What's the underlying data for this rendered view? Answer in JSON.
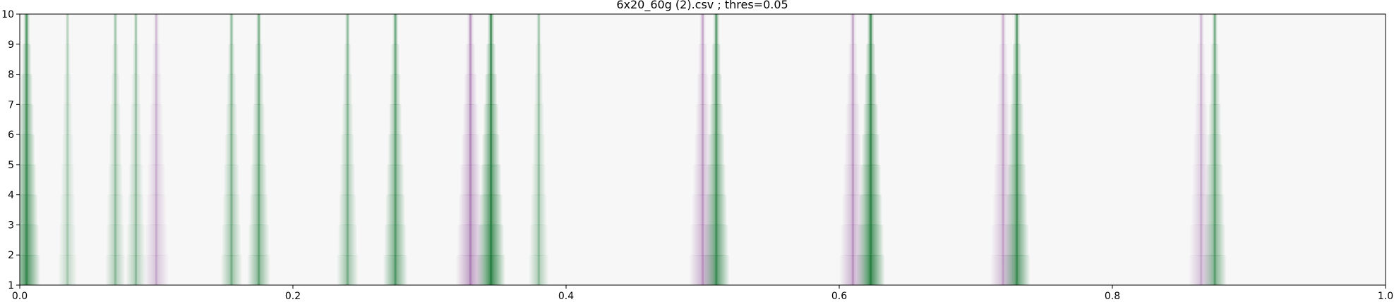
{
  "chart_data": {
    "type": "heatmap",
    "title": "6x20_60g (2).csv ; thres=0.05",
    "xlabel": "",
    "ylabel": "",
    "xlim": [
      0,
      1
    ],
    "ylim": [
      1,
      10
    ],
    "x_ticks": [
      {
        "value": 0.0,
        "label": "0.0"
      },
      {
        "value": 0.2,
        "label": "0.2"
      },
      {
        "value": 0.4,
        "label": "0.4"
      },
      {
        "value": 0.6,
        "label": "0.6"
      },
      {
        "value": 0.8,
        "label": "0.8"
      },
      {
        "value": 1.0,
        "label": "1.0"
      }
    ],
    "y_ticks": [
      {
        "value": 1,
        "label": "1"
      },
      {
        "value": 2,
        "label": "2"
      },
      {
        "value": 3,
        "label": "3"
      },
      {
        "value": 4,
        "label": "4"
      },
      {
        "value": 5,
        "label": "5"
      },
      {
        "value": 6,
        "label": "6"
      },
      {
        "value": 7,
        "label": "7"
      },
      {
        "value": 8,
        "label": "8"
      },
      {
        "value": 9,
        "label": "9"
      },
      {
        "value": 10,
        "label": "10"
      }
    ],
    "grid": false,
    "colormap": "diverging purple-white-green",
    "colors": {
      "negative": "#762a83",
      "neutral": "#f7f7f7",
      "positive": "#1b7837"
    },
    "peaks": [
      {
        "x": 0.005,
        "intensity": 0.9,
        "type": "positive"
      },
      {
        "x": 0.035,
        "intensity": 0.3,
        "type": "positive"
      },
      {
        "x": 0.07,
        "intensity": 0.4,
        "type": "positive"
      },
      {
        "x": 0.085,
        "intensity": 0.4,
        "type": "positive"
      },
      {
        "x": 0.155,
        "intensity": 0.5,
        "type": "positive"
      },
      {
        "x": 0.175,
        "intensity": 0.6,
        "type": "positive"
      },
      {
        "x": 0.24,
        "intensity": 0.5,
        "type": "positive"
      },
      {
        "x": 0.275,
        "intensity": 0.7,
        "type": "positive"
      },
      {
        "x": 0.345,
        "intensity": 1.0,
        "type": "positive"
      },
      {
        "x": 0.38,
        "intensity": 0.4,
        "type": "positive"
      },
      {
        "x": 0.51,
        "intensity": 0.85,
        "type": "positive"
      },
      {
        "x": 0.623,
        "intensity": 1.0,
        "type": "positive"
      },
      {
        "x": 0.73,
        "intensity": 0.85,
        "type": "positive"
      },
      {
        "x": 0.875,
        "intensity": 0.65,
        "type": "positive"
      },
      {
        "x": 0.1,
        "intensity": 0.3,
        "type": "negative"
      },
      {
        "x": 0.33,
        "intensity": 0.5,
        "type": "negative"
      },
      {
        "x": 0.5,
        "intensity": 0.4,
        "type": "negative"
      },
      {
        "x": 0.61,
        "intensity": 0.4,
        "type": "negative"
      },
      {
        "x": 0.72,
        "intensity": 0.35,
        "type": "negative"
      },
      {
        "x": 0.865,
        "intensity": 0.3,
        "type": "negative"
      }
    ]
  }
}
